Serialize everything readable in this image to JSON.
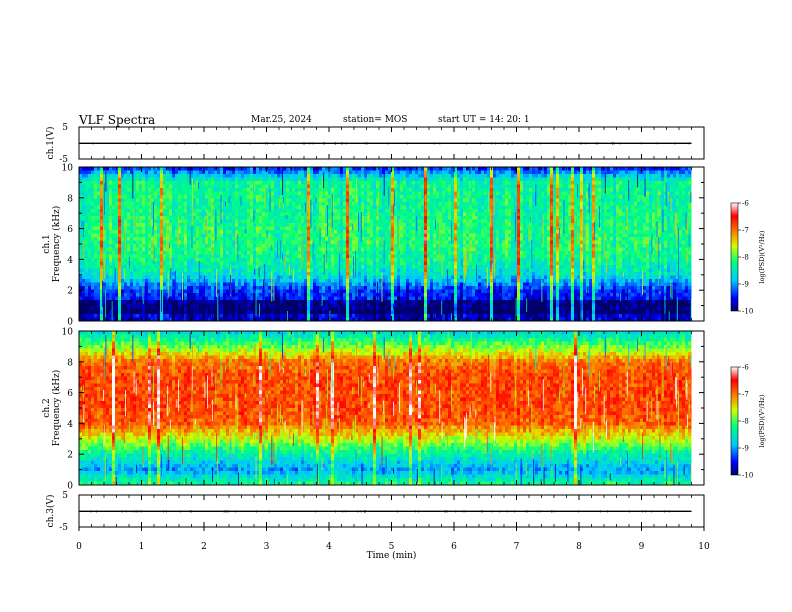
{
  "header": {
    "title": "VLF Spectra",
    "date": "Mar.25, 2024",
    "station": "station= MOS",
    "start_ut": "start  UT =   14: 20: 1"
  },
  "chart_data": [
    {
      "type": "line",
      "panel": "ch1-waveform",
      "ylabel": "ch.1(V)",
      "yticks": [
        "5",
        "-5"
      ],
      "ylim": [
        -5,
        5
      ],
      "xlim": [
        0,
        10
      ],
      "series": [
        {
          "x": [
            0,
            9.8
          ],
          "values": [
            -0.1,
            -0.1
          ]
        }
      ]
    },
    {
      "type": "heatmap",
      "panel": "ch1-spectrogram",
      "ylabel": "ch.1 Frequency (kHz)",
      "yticks": [
        "0",
        "2",
        "4",
        "6",
        "8",
        "10"
      ],
      "ylim": [
        0,
        10
      ],
      "xlim": [
        0,
        10
      ],
      "data_end_min": 9.8,
      "colorbar": {
        "label": "log(PSD)(V²/Hz)",
        "ticks": [
          "-6",
          "-7",
          "-8",
          "-9",
          "-10"
        ],
        "range": [
          -10,
          -6
        ]
      },
      "freq_profile_log_psd": [
        -9.8,
        -9.6,
        -9.4,
        -8.6,
        -8.3,
        -8.2,
        -8.2,
        -8.3,
        -8.3,
        -8.3,
        -9.5
      ]
    },
    {
      "type": "heatmap",
      "panel": "ch2-spectrogram",
      "ylabel": "ch.2 Frequency (kHz)",
      "yticks": [
        "0",
        "2",
        "4",
        "6",
        "8",
        "10"
      ],
      "ylim": [
        0,
        10
      ],
      "xlim": [
        0,
        10
      ],
      "data_end_min": 9.8,
      "colorbar": {
        "label": "log(PSD)(V²/Hz)",
        "ticks": [
          "-6",
          "-7",
          "-8",
          "-9",
          "-10"
        ],
        "range": [
          -10,
          -6
        ]
      },
      "freq_profile_log_psd": [
        -8.2,
        -9.0,
        -8.4,
        -7.6,
        -6.9,
        -6.8,
        -6.8,
        -6.8,
        -7.0,
        -7.9,
        -8.7
      ]
    },
    {
      "type": "line",
      "panel": "ch3-waveform",
      "ylabel": "ch.3(V)",
      "yticks": [
        "5",
        "-5"
      ],
      "ylim": [
        -5,
        5
      ],
      "xlim": [
        0,
        10
      ],
      "xlabel": "Time  (min)",
      "xticks": [
        "0",
        "1",
        "2",
        "3",
        "4",
        "5",
        "6",
        "7",
        "8",
        "9",
        "10"
      ],
      "series": [
        {
          "x": [
            0,
            9.8
          ],
          "values": [
            -0.1,
            -0.1
          ]
        }
      ]
    }
  ]
}
